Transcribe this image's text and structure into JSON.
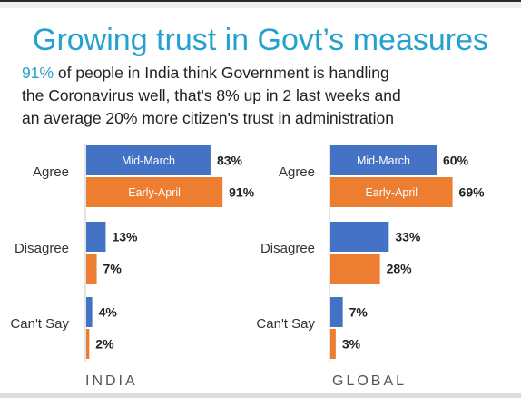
{
  "title": "Growing trust in Govt’s measures",
  "subtitle": {
    "highlight": "91%",
    "line1_rest": " of people in India think Government is handling",
    "line2": "the Coronavirus well, that's 8% up in 2 last  weeks and",
    "line3": "an average 20% more citizen's trust in administration"
  },
  "colors": {
    "mid_march": "#4472c4",
    "early_april": "#ed7d31",
    "title": "#23a1cf"
  },
  "chart_data": [
    {
      "type": "bar",
      "orientation": "horizontal",
      "panel_label": "INDIA",
      "categories": [
        "Agree",
        "Disagree",
        "Can't Say"
      ],
      "series": [
        {
          "name": "Mid-March",
          "values": [
            83,
            13,
            4
          ],
          "labels": [
            "83%",
            "13%",
            "4%"
          ]
        },
        {
          "name": "Early-April",
          "values": [
            91,
            7,
            2
          ],
          "labels": [
            "91%",
            "7%",
            "2%"
          ]
        }
      ],
      "xlim": [
        0,
        100
      ]
    },
    {
      "type": "bar",
      "orientation": "horizontal",
      "panel_label": "GLOBAL",
      "categories": [
        "Agree",
        "Disagree",
        "Can't Say"
      ],
      "series": [
        {
          "name": "Mid-March",
          "values": [
            60,
            33,
            7
          ],
          "labels": [
            "60%",
            "33%",
            "7%"
          ]
        },
        {
          "name": "Early-April",
          "values": [
            69,
            28,
            3
          ],
          "labels": [
            "69%",
            "28%",
            "3%"
          ]
        }
      ],
      "xlim": [
        0,
        100
      ]
    }
  ]
}
